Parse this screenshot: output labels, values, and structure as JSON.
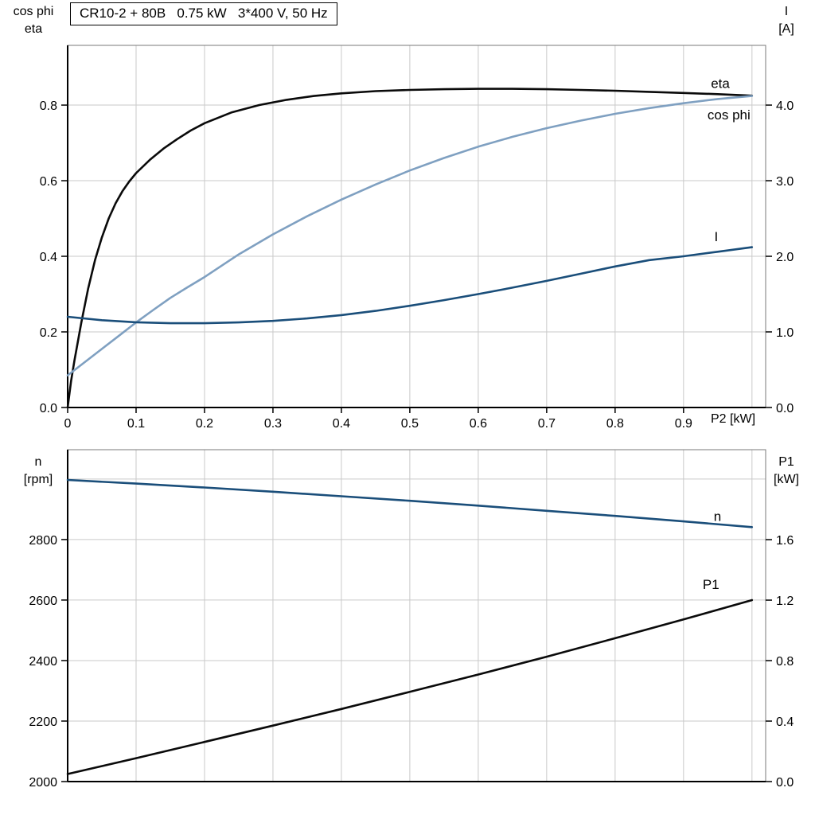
{
  "title_box": "CR10-2 + 80B   0.75 kW   3*400 V, 50 Hz",
  "colors": {
    "grid": "#c9c9c9",
    "frame": "#7a7a7a",
    "axis": "#000000",
    "black_curve": "#0a0a0a",
    "light_blue_curve": "#7fa0c1",
    "dark_blue_curve": "#1a4e7a"
  },
  "chart_data": [
    {
      "type": "line",
      "title": "",
      "x_axis": {
        "label": "P2 [kW]",
        "range": [
          0,
          1.02
        ],
        "tick_values": [
          0,
          0.1,
          0.2,
          0.3,
          0.4,
          0.5,
          0.6,
          0.7,
          0.8,
          0.9
        ],
        "tick_labels": [
          "0",
          "0.1",
          "0.2",
          "0.3",
          "0.4",
          "0.5",
          "0.6",
          "0.7",
          "0.8",
          "0.9"
        ],
        "grid": [
          0.1,
          0.2,
          0.3,
          0.4,
          0.5,
          0.6,
          0.7,
          0.8,
          0.9,
          1.0
        ]
      },
      "left_axis": {
        "title_line1": "cos phi",
        "title_line2": "eta",
        "range": [
          0,
          0.958
        ],
        "tick_values": [
          0,
          0.2,
          0.4,
          0.6,
          0.8
        ],
        "tick_labels": [
          "0.0",
          "0.2",
          "0.4",
          "0.6",
          "0.8"
        ],
        "grid": [
          0.2,
          0.4,
          0.6,
          0.8
        ]
      },
      "right_axis": {
        "title_line1": "I",
        "title_line2": "[A]",
        "range": [
          0,
          4.79
        ],
        "tick_values": [
          0,
          1,
          2,
          3,
          4
        ],
        "tick_labels": [
          "0.0",
          "1.0",
          "2.0",
          "3.0",
          "4.0"
        ]
      },
      "series": [
        {
          "id": "eta",
          "name": "eta",
          "axis": "left",
          "color": "#0a0a0a",
          "width": 2.6,
          "label_at": [
            0.94,
            0.845
          ],
          "points": [
            [
              0,
              0
            ],
            [
              0.005,
              0.07
            ],
            [
              0.01,
              0.125
            ],
            [
              0.015,
              0.175
            ],
            [
              0.02,
              0.225
            ],
            [
              0.03,
              0.315
            ],
            [
              0.04,
              0.39
            ],
            [
              0.05,
              0.45
            ],
            [
              0.06,
              0.5
            ],
            [
              0.07,
              0.54
            ],
            [
              0.08,
              0.572
            ],
            [
              0.09,
              0.598
            ],
            [
              0.1,
              0.62
            ],
            [
              0.12,
              0.655
            ],
            [
              0.14,
              0.685
            ],
            [
              0.16,
              0.71
            ],
            [
              0.18,
              0.733
            ],
            [
              0.2,
              0.752
            ],
            [
              0.24,
              0.781
            ],
            [
              0.28,
              0.8
            ],
            [
              0.32,
              0.814
            ],
            [
              0.36,
              0.824
            ],
            [
              0.4,
              0.831
            ],
            [
              0.45,
              0.837
            ],
            [
              0.5,
              0.84
            ],
            [
              0.55,
              0.842
            ],
            [
              0.6,
              0.843
            ],
            [
              0.65,
              0.843
            ],
            [
              0.7,
              0.842
            ],
            [
              0.75,
              0.84
            ],
            [
              0.8,
              0.838
            ],
            [
              0.85,
              0.835
            ],
            [
              0.9,
              0.832
            ],
            [
              0.95,
              0.829
            ],
            [
              1.0,
              0.825
            ]
          ]
        },
        {
          "id": "cos-phi",
          "name": "cos phi",
          "axis": "left",
          "color": "#7fa0c1",
          "width": 2.6,
          "label_at": [
            0.935,
            0.762
          ],
          "points": [
            [
              0,
              0.085
            ],
            [
              0.025,
              0.12
            ],
            [
              0.05,
              0.155
            ],
            [
              0.075,
              0.19
            ],
            [
              0.1,
              0.225
            ],
            [
              0.125,
              0.258
            ],
            [
              0.15,
              0.29
            ],
            [
              0.175,
              0.318
            ],
            [
              0.2,
              0.345
            ],
            [
              0.25,
              0.405
            ],
            [
              0.3,
              0.458
            ],
            [
              0.35,
              0.506
            ],
            [
              0.4,
              0.55
            ],
            [
              0.45,
              0.59
            ],
            [
              0.5,
              0.627
            ],
            [
              0.55,
              0.66
            ],
            [
              0.6,
              0.69
            ],
            [
              0.65,
              0.716
            ],
            [
              0.7,
              0.739
            ],
            [
              0.75,
              0.759
            ],
            [
              0.8,
              0.777
            ],
            [
              0.85,
              0.792
            ],
            [
              0.9,
              0.805
            ],
            [
              0.95,
              0.816
            ],
            [
              1.0,
              0.824
            ]
          ]
        },
        {
          "id": "current",
          "name": "I",
          "axis": "right",
          "color": "#1a4e7a",
          "width": 2.6,
          "label_at": [
            0.945,
            2.2
          ],
          "points": [
            [
              0,
              1.2
            ],
            [
              0.05,
              1.155
            ],
            [
              0.1,
              1.128
            ],
            [
              0.15,
              1.115
            ],
            [
              0.2,
              1.115
            ],
            [
              0.25,
              1.125
            ],
            [
              0.3,
              1.145
            ],
            [
              0.35,
              1.178
            ],
            [
              0.4,
              1.222
            ],
            [
              0.45,
              1.278
            ],
            [
              0.5,
              1.345
            ],
            [
              0.55,
              1.42
            ],
            [
              0.6,
              1.5
            ],
            [
              0.65,
              1.585
            ],
            [
              0.7,
              1.675
            ],
            [
              0.75,
              1.77
            ],
            [
              0.8,
              1.865
            ],
            [
              0.85,
              1.95
            ],
            [
              0.9,
              2.0
            ],
            [
              0.95,
              2.06
            ],
            [
              1.0,
              2.12
            ]
          ]
        }
      ]
    },
    {
      "type": "line",
      "title": "",
      "x_axis": {
        "label": "",
        "range": [
          0,
          1.02
        ],
        "tick_values": [],
        "tick_labels": [],
        "grid": [
          0.1,
          0.2,
          0.3,
          0.4,
          0.5,
          0.6,
          0.7,
          0.8,
          0.9,
          1.0
        ]
      },
      "left_axis": {
        "title_line1": "n",
        "title_line2": "[rpm]",
        "range": [
          2000,
          3097
        ],
        "tick_values": [
          2000,
          2200,
          2400,
          2600,
          2800
        ],
        "tick_labels": [
          "2000",
          "2200",
          "2400",
          "2600",
          "2800"
        ],
        "grid": [
          2200,
          2400,
          2600,
          2800,
          3000
        ]
      },
      "right_axis": {
        "title_line1": "P1",
        "title_line2": "[kW]",
        "range": [
          0,
          2.195
        ],
        "tick_values": [
          0,
          0.4,
          0.8,
          1.2,
          1.6
        ],
        "tick_labels": [
          "0.0",
          "0.4",
          "0.8",
          "1.2",
          "1.6"
        ]
      },
      "series": [
        {
          "id": "speed",
          "name": "n",
          "axis": "left",
          "color": "#1a4e7a",
          "width": 2.6,
          "label_at": [
            0.944,
            2862
          ],
          "points": [
            [
              0,
              2997
            ],
            [
              0.1,
              2985
            ],
            [
              0.2,
              2972
            ],
            [
              0.3,
              2958
            ],
            [
              0.4,
              2943
            ],
            [
              0.5,
              2928
            ],
            [
              0.6,
              2912
            ],
            [
              0.7,
              2895
            ],
            [
              0.8,
              2878
            ],
            [
              0.9,
              2860
            ],
            [
              1.0,
              2841
            ]
          ]
        },
        {
          "id": "p1",
          "name": "P1",
          "axis": "right",
          "color": "#0a0a0a",
          "width": 2.6,
          "label_at": [
            0.928,
            1.274
          ],
          "points": [
            [
              0,
              0.05
            ],
            [
              0.1,
              0.155
            ],
            [
              0.2,
              0.262
            ],
            [
              0.3,
              0.37
            ],
            [
              0.4,
              0.48
            ],
            [
              0.5,
              0.593
            ],
            [
              0.6,
              0.708
            ],
            [
              0.7,
              0.826
            ],
            [
              0.8,
              0.948
            ],
            [
              0.9,
              1.072
            ],
            [
              1.0,
              1.2
            ]
          ]
        }
      ]
    }
  ]
}
